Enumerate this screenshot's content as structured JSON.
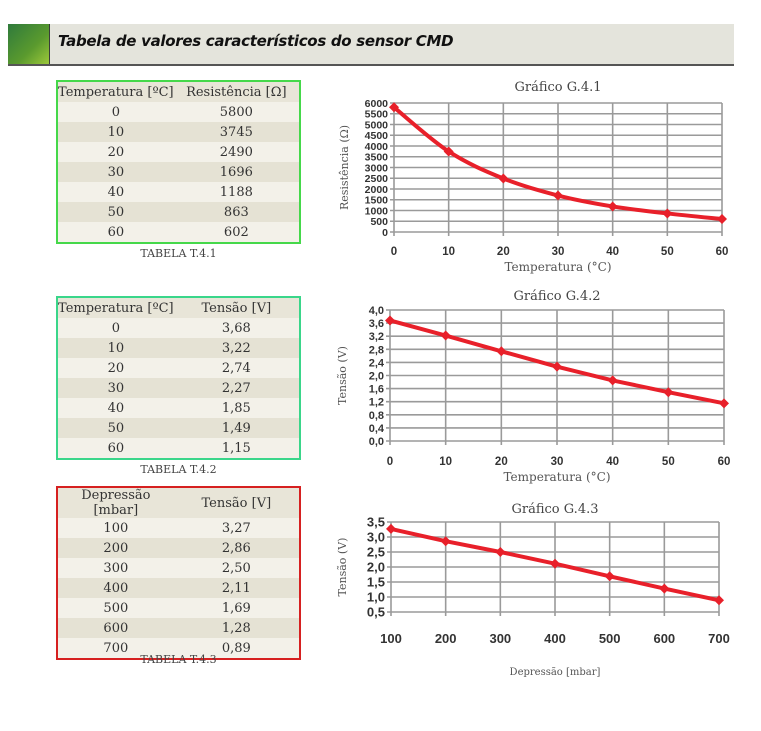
{
  "header": {
    "title": "Tabela de valores característicos do sensor CMD"
  },
  "colors": {
    "red_series": "#e8202a",
    "green_border": "#45d84a",
    "teal_border": "#3ad68a",
    "red_border": "#d62020",
    "grid": "#9a9a9a"
  },
  "tables": [
    {
      "caption": "TABELA T.4.1",
      "headers": [
        "Temperatura [ºC]",
        "Resistência [Ω]"
      ],
      "rows": [
        [
          "0",
          "5800"
        ],
        [
          "10",
          "3745"
        ],
        [
          "20",
          "2490"
        ],
        [
          "30",
          "1696"
        ],
        [
          "40",
          "1188"
        ],
        [
          "50",
          "863"
        ],
        [
          "60",
          "602"
        ]
      ]
    },
    {
      "caption": "TABELA T.4.2",
      "headers": [
        "Temperatura [ºC]",
        "Tensão [V]"
      ],
      "rows": [
        [
          "0",
          "3,68"
        ],
        [
          "10",
          "3,22"
        ],
        [
          "20",
          "2,74"
        ],
        [
          "30",
          "2,27"
        ],
        [
          "40",
          "1,85"
        ],
        [
          "50",
          "1,49"
        ],
        [
          "60",
          "1,15"
        ]
      ]
    },
    {
      "caption": "TABELA T.4.3",
      "headers": [
        "Depressão [mbar]",
        "Tensão [V]"
      ],
      "rows": [
        [
          "100",
          "3,27"
        ],
        [
          "200",
          "2,86"
        ],
        [
          "300",
          "2,50"
        ],
        [
          "400",
          "2,11"
        ],
        [
          "500",
          "1,69"
        ],
        [
          "600",
          "1,28"
        ],
        [
          "700",
          "0,89"
        ]
      ]
    }
  ],
  "chart_data": [
    {
      "type": "line",
      "title": "Gráfico G.4.1",
      "xlabel": "Temperatura (°C)",
      "ylabel": "Resistência (Ω)",
      "x": [
        0,
        10,
        20,
        30,
        40,
        50,
        60
      ],
      "values": [
        5800,
        3745,
        2490,
        1696,
        1188,
        863,
        602
      ],
      "xlim": [
        0,
        60
      ],
      "ylim": [
        0,
        6000
      ],
      "xticks": [
        "0",
        "10",
        "20",
        "30",
        "40",
        "50",
        "60"
      ],
      "yticks": [
        "0",
        "500",
        "1000",
        "1500",
        "2000",
        "2500",
        "3000",
        "3500",
        "4000",
        "4500",
        "5000",
        "5500",
        "6000"
      ],
      "ytick_values": [
        0,
        500,
        1000,
        1500,
        2000,
        2500,
        3000,
        3500,
        4000,
        4500,
        5000,
        5500,
        6000
      ],
      "grid": true,
      "smooth": true
    },
    {
      "type": "line",
      "title": "Gráfico G.4.2",
      "xlabel": "Temperatura (°C)",
      "ylabel": "Tensão (V)",
      "x": [
        0,
        10,
        20,
        30,
        40,
        50,
        60
      ],
      "values": [
        3.68,
        3.22,
        2.74,
        2.27,
        1.85,
        1.49,
        1.15
      ],
      "xlim": [
        0,
        60
      ],
      "ylim": [
        0,
        4.0
      ],
      "xticks": [
        "0",
        "10",
        "20",
        "30",
        "40",
        "50",
        "60"
      ],
      "yticks": [
        "0,0",
        "0,4",
        "0,8",
        "1,2",
        "1,6",
        "2,0",
        "2,4",
        "2,8",
        "3,2",
        "3,6",
        "4,0"
      ],
      "ytick_values": [
        0,
        0.4,
        0.8,
        1.2,
        1.6,
        2.0,
        2.4,
        2.8,
        3.2,
        3.6,
        4.0
      ],
      "grid": true,
      "smooth": false
    },
    {
      "type": "line",
      "title": "Gráfico G.4.3",
      "xlabel": "Depressão [mbar]",
      "ylabel": "Tensão (V)",
      "x": [
        100,
        200,
        300,
        400,
        500,
        600,
        700
      ],
      "values": [
        3.27,
        2.86,
        2.5,
        2.11,
        1.69,
        1.28,
        0.89
      ],
      "xlim": [
        100,
        700
      ],
      "ylim": [
        0.5,
        3.5
      ],
      "xticks": [
        "100",
        "200",
        "300",
        "400",
        "500",
        "600",
        "700"
      ],
      "yticks": [
        "0,5",
        "1,0",
        "1,5",
        "2,0",
        "2,5",
        "3,0",
        "3,5"
      ],
      "ytick_values": [
        0.5,
        1.0,
        1.5,
        2.0,
        2.5,
        3.0,
        3.5
      ],
      "grid": true,
      "smooth": false
    }
  ]
}
